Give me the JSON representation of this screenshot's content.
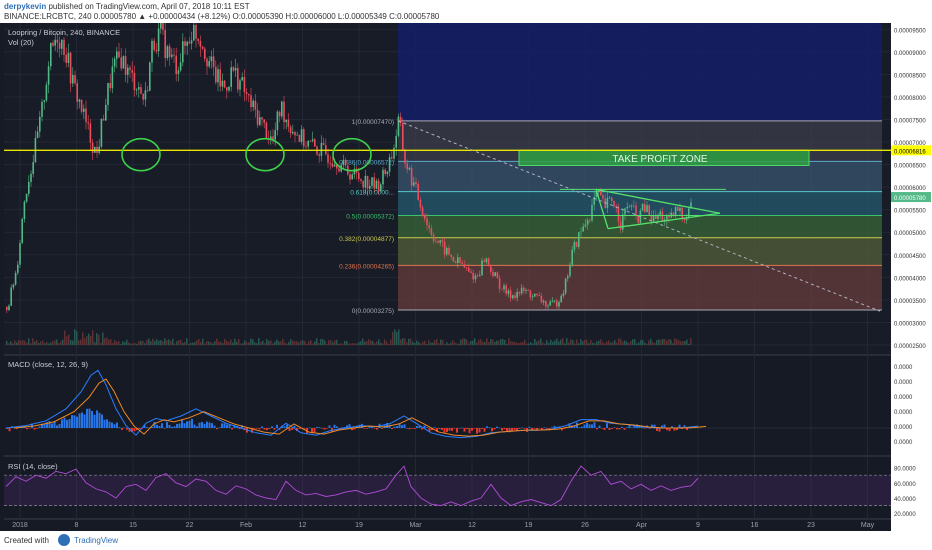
{
  "header": {
    "user": "derpykevin",
    "published": "published on TradingView.com, April 07, 2018 10:11 EST",
    "symbol_line": "BINANCE:LRCBTC, 240  0.00005780 ▲ +0.00000434 (+8.12%) O:0.00005390 H:0.00006000 L:0.00005349 C:0.00005780"
  },
  "chart_data": [
    {
      "type": "candlestick",
      "title": "Loopring / Bitcoin, 240, BINANCE",
      "volume_label": "Vol (20)",
      "x_ticks": [
        "2018",
        "8",
        "15",
        "22",
        "Feb",
        "12",
        "19",
        "Mar",
        "12",
        "19",
        "26",
        "Apr",
        "9",
        "16",
        "23",
        "May"
      ],
      "y_ticks": [
        "0.00009500",
        "0.00009000",
        "0.00008500",
        "0.00008000",
        "0.00007500",
        "0.00007000",
        "0.00006500",
        "0.00006000",
        "0.00005500",
        "0.00005000",
        "0.00004500",
        "0.00004000",
        "0.00003500",
        "0.00003000",
        "0.00002500"
      ],
      "ylim": [
        2.5e-05,
        9.55e-05
      ],
      "last_price": "0.00005780",
      "price_line": {
        "value": 6.816e-05,
        "label": "0.00006816",
        "color": "#e6e600"
      },
      "fib_levels": [
        {
          "ratio": 1,
          "price": 7.47e-05,
          "label": "1(0.00007470)"
        },
        {
          "ratio": 0.786,
          "price": 6.572e-05,
          "label": "0.786(0.00006572)"
        },
        {
          "ratio": 0.618,
          "price": 5.9e-05,
          "label": "0.618(0.0000..."
        },
        {
          "ratio": 0.5,
          "price": 5.372e-05,
          "label": "0.5(0.00005372)"
        },
        {
          "ratio": 0.382,
          "price": 4.877e-05,
          "label": "0.382(0.00004877)"
        },
        {
          "ratio": 0.236,
          "price": 4.265e-05,
          "label": "0.236(0.00004265)"
        },
        {
          "ratio": 0,
          "price": 3.275e-05,
          "label": "0(0.00003275)"
        }
      ],
      "zones": [
        {
          "label": "TAKE PROFIT ZONE",
          "from": 6.48e-05,
          "to": 6.82e-05,
          "color": "#2ea043"
        }
      ],
      "price_points": [
        [
          0,
          3.05e-05
        ],
        [
          8,
          3.45e-05
        ],
        [
          16,
          4.2e-05
        ],
        [
          24,
          5.8e-05
        ],
        [
          32,
          6.6e-05
        ],
        [
          40,
          7.5e-05
        ],
        [
          48,
          8.8e-05
        ],
        [
          56,
          9.4e-05
        ],
        [
          64,
          9.1e-05
        ],
        [
          72,
          8.3e-05
        ],
        [
          80,
          7.8e-05
        ],
        [
          88,
          7.2e-05
        ],
        [
          96,
          6.7e-05
        ],
        [
          104,
          7.8e-05
        ],
        [
          112,
          8.6e-05
        ],
        [
          120,
          8.9e-05
        ],
        [
          128,
          8.5e-05
        ],
        [
          136,
          8.3e-05
        ],
        [
          144,
          7.9e-05
        ],
        [
          152,
          9.2e-05
        ],
        [
          160,
          9.4e-05
        ],
        [
          168,
          8.9e-05
        ],
        [
          176,
          8.7e-05
        ],
        [
          184,
          9.1e-05
        ],
        [
          192,
          9.5e-05
        ],
        [
          200,
          9.3e-05
        ],
        [
          208,
          8.8e-05
        ],
        [
          216,
          8.4e-05
        ],
        [
          224,
          8.2e-05
        ],
        [
          232,
          8.6e-05
        ],
        [
          240,
          8.3e-05
        ],
        [
          248,
          7.9e-05
        ],
        [
          256,
          7.6e-05
        ],
        [
          264,
          7.3e-05
        ],
        [
          272,
          7e-05
        ],
        [
          280,
          7.8e-05
        ],
        [
          288,
          7.4e-05
        ],
        [
          296,
          7.2e-05
        ],
        [
          304,
          7e-05
        ],
        [
          312,
          6.9e-05
        ],
        [
          320,
          6.8e-05
        ],
        [
          328,
          6.7e-05
        ],
        [
          336,
          6.6e-05
        ],
        [
          344,
          6.4e-05
        ],
        [
          352,
          6.3e-05
        ],
        [
          360,
          6.2e-05
        ],
        [
          368,
          6.1e-05
        ],
        [
          376,
          6e-05
        ],
        [
          384,
          6.3e-05
        ],
        [
          392,
          6.8e-05
        ],
        [
          398,
          7.47e-05
        ],
        [
          404,
          6.6e-05
        ],
        [
          412,
          6.1e-05
        ],
        [
          420,
          5.6e-05
        ],
        [
          428,
          5.1e-05
        ],
        [
          436,
          4.8e-05
        ],
        [
          444,
          4.6e-05
        ],
        [
          452,
          4.4e-05
        ],
        [
          460,
          4.3e-05
        ],
        [
          468,
          4.1e-05
        ],
        [
          476,
          4e-05
        ],
        [
          484,
          4.45e-05
        ],
        [
          492,
          4.1e-05
        ],
        [
          500,
          3.8e-05
        ],
        [
          508,
          3.6e-05
        ],
        [
          516,
          3.65e-05
        ],
        [
          524,
          3.7e-05
        ],
        [
          532,
          3.6e-05
        ],
        [
          540,
          3.5e-05
        ],
        [
          548,
          3.35e-05
        ],
        [
          556,
          3.45e-05
        ],
        [
          564,
          3.8e-05
        ],
        [
          572,
          4.6e-05
        ],
        [
          580,
          5e-05
        ],
        [
          588,
          5.35e-05
        ],
        [
          596,
          5.85e-05
        ],
        [
          604,
          5.55e-05
        ],
        [
          612,
          5.75e-05
        ],
        [
          620,
          5.2e-05
        ],
        [
          628,
          5.65e-05
        ],
        [
          636,
          5.3e-05
        ],
        [
          644,
          5.55e-05
        ],
        [
          652,
          5.25e-05
        ],
        [
          660,
          5.4e-05
        ],
        [
          668,
          5.2e-05
        ],
        [
          676,
          5.5e-05
        ],
        [
          684,
          5.35e-05
        ],
        [
          692,
          5.78e-05
        ]
      ]
    },
    {
      "type": "line",
      "title": "MACD (close, 12, 26, 9)",
      "y_ticks": [
        "0.0000",
        "0.0000",
        "0.0000",
        "0.0000",
        "0.0000",
        "0.0000"
      ],
      "series": [
        {
          "name": "MACD",
          "color": "#2a7fff"
        },
        {
          "name": "Signal",
          "color": "#f08a24"
        }
      ],
      "macd_points": [
        [
          0,
          0
        ],
        [
          20,
          0.1
        ],
        [
          40,
          0.3
        ],
        [
          60,
          0.8
        ],
        [
          75,
          1.5
        ],
        [
          85,
          2.2
        ],
        [
          92,
          2.4
        ],
        [
          100,
          1.8
        ],
        [
          110,
          0.8
        ],
        [
          120,
          0.1
        ],
        [
          130,
          -0.3
        ],
        [
          140,
          0.2
        ],
        [
          150,
          0.4
        ],
        [
          160,
          0.3
        ],
        [
          175,
          0.5
        ],
        [
          190,
          0.8
        ],
        [
          205,
          0.5
        ],
        [
          220,
          0.2
        ],
        [
          235,
          0.0
        ],
        [
          250,
          -0.2
        ],
        [
          265,
          -0.3
        ],
        [
          280,
          0.2
        ],
        [
          295,
          -0.2
        ],
        [
          310,
          -0.3
        ],
        [
          325,
          -0.1
        ],
        [
          340,
          0.0
        ],
        [
          355,
          0.1
        ],
        [
          370,
          0.05
        ],
        [
          385,
          0.2
        ],
        [
          398,
          0.5
        ],
        [
          410,
          0.2
        ],
        [
          425,
          -0.2
        ],
        [
          440,
          -0.35
        ],
        [
          455,
          -0.4
        ],
        [
          470,
          -0.35
        ],
        [
          485,
          -0.2
        ],
        [
          500,
          -0.15
        ],
        [
          515,
          -0.1
        ],
        [
          530,
          -0.1
        ],
        [
          545,
          -0.05
        ],
        [
          560,
          0.1
        ],
        [
          575,
          0.35
        ],
        [
          590,
          0.35
        ],
        [
          605,
          0.2
        ],
        [
          620,
          0.15
        ],
        [
          635,
          0.05
        ],
        [
          650,
          0.0
        ],
        [
          665,
          0.0
        ],
        [
          680,
          0.02
        ],
        [
          692,
          0.08
        ]
      ]
    },
    {
      "type": "line",
      "title": "RSI (14, close)",
      "y_ticks": [
        "80.0000",
        "60.0000",
        "40.0000",
        "20.0000"
      ],
      "ylim": [
        15,
        90
      ],
      "bands": [
        30,
        70
      ],
      "rsi_points": [
        [
          0,
          55
        ],
        [
          10,
          68
        ],
        [
          20,
          62
        ],
        [
          30,
          70
        ],
        [
          40,
          66
        ],
        [
          50,
          75
        ],
        [
          60,
          72
        ],
        [
          70,
          78
        ],
        [
          80,
          60
        ],
        [
          90,
          52
        ],
        [
          100,
          48
        ],
        [
          110,
          40
        ],
        [
          120,
          55
        ],
        [
          130,
          58
        ],
        [
          140,
          50
        ],
        [
          150,
          67
        ],
        [
          160,
          72
        ],
        [
          170,
          60
        ],
        [
          180,
          55
        ],
        [
          190,
          65
        ],
        [
          200,
          62
        ],
        [
          210,
          50
        ],
        [
          220,
          45
        ],
        [
          230,
          56
        ],
        [
          240,
          52
        ],
        [
          250,
          44
        ],
        [
          260,
          40
        ],
        [
          270,
          38
        ],
        [
          280,
          62
        ],
        [
          290,
          50
        ],
        [
          300,
          44
        ],
        [
          310,
          46
        ],
        [
          320,
          42
        ],
        [
          330,
          44
        ],
        [
          340,
          48
        ],
        [
          350,
          50
        ],
        [
          360,
          45
        ],
        [
          370,
          48
        ],
        [
          380,
          52
        ],
        [
          390,
          70
        ],
        [
          398,
          82
        ],
        [
          405,
          55
        ],
        [
          415,
          40
        ],
        [
          425,
          32
        ],
        [
          435,
          30
        ],
        [
          445,
          35
        ],
        [
          455,
          30
        ],
        [
          465,
          36
        ],
        [
          475,
          40
        ],
        [
          485,
          58
        ],
        [
          495,
          40
        ],
        [
          505,
          30
        ],
        [
          515,
          35
        ],
        [
          525,
          38
        ],
        [
          535,
          34
        ],
        [
          545,
          30
        ],
        [
          555,
          38
        ],
        [
          565,
          62
        ],
        [
          575,
          82
        ],
        [
          585,
          70
        ],
        [
          595,
          75
        ],
        [
          605,
          58
        ],
        [
          615,
          62
        ],
        [
          625,
          52
        ],
        [
          635,
          58
        ],
        [
          645,
          50
        ],
        [
          655,
          56
        ],
        [
          665,
          50
        ],
        [
          675,
          54
        ],
        [
          685,
          56
        ],
        [
          692,
          66
        ]
      ]
    }
  ],
  "footer": {
    "created": "Created with",
    "brand": "TradingView"
  }
}
